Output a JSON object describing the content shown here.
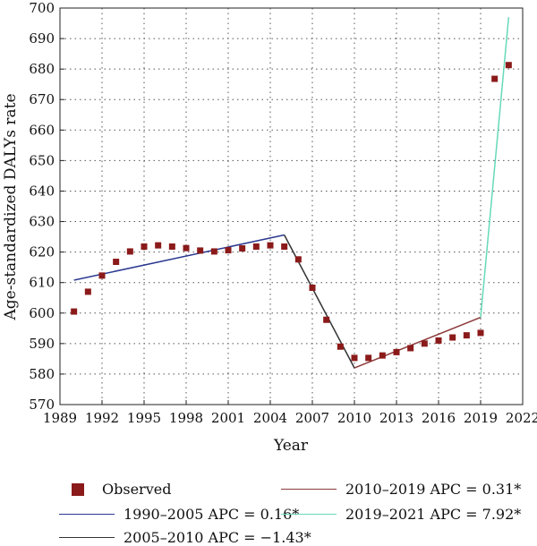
{
  "chart_data": {
    "type": "scatter",
    "xlabel": "Year",
    "ylabel": "Age-standardized DALYs rate",
    "xlim": [
      1989,
      2022
    ],
    "ylim": [
      570,
      700
    ],
    "xticks": [
      "1989",
      "1992",
      "1995",
      "1998",
      "2001",
      "2004",
      "2007",
      "2010",
      "2013",
      "2016",
      "2019",
      "2022"
    ],
    "yticks": [
      "570",
      "580",
      "590",
      "600",
      "610",
      "620",
      "630",
      "640",
      "650",
      "660",
      "670",
      "680",
      "690",
      "700"
    ],
    "grid": true,
    "observed": {
      "name": "Observed",
      "color": "#8B1A1A",
      "x": [
        1990,
        1991,
        1992,
        1993,
        1994,
        1995,
        1996,
        1997,
        1998,
        1999,
        2000,
        2001,
        2002,
        2003,
        2004,
        2005,
        2006,
        2007,
        2008,
        2009,
        2010,
        2011,
        2012,
        2013,
        2014,
        2015,
        2016,
        2017,
        2018,
        2019,
        2020,
        2021
      ],
      "y": [
        600.5,
        607.0,
        612.3,
        616.8,
        620.2,
        621.8,
        622.2,
        621.8,
        621.3,
        620.5,
        620.2,
        620.6,
        621.2,
        621.8,
        622.2,
        621.8,
        617.6,
        608.3,
        597.8,
        589.0,
        585.3,
        585.3,
        586.1,
        587.2,
        588.5,
        590.0,
        591.0,
        592.0,
        592.7,
        593.5,
        676.8,
        681.3
      ]
    },
    "segments": [
      {
        "name": "1990–2005 APC = 0.16*",
        "color": "#2B3990",
        "x": [
          1990,
          2005
        ],
        "y": [
          610.8,
          625.6
        ]
      },
      {
        "name": "2005–2010 APC = −1.43*",
        "color": "#333333",
        "x": [
          2005,
          2010
        ],
        "y": [
          625.6,
          582.0
        ]
      },
      {
        "name": "2010–2019 APC = 0.31*",
        "color": "#8B3A3A",
        "x": [
          2010,
          2019
        ],
        "y": [
          582.0,
          598.6
        ]
      },
      {
        "name": "2019–2021 APC = 7.92*",
        "color": "#66D9B8",
        "x": [
          2019,
          2021
        ],
        "y": [
          598.6,
          697.0
        ]
      }
    ]
  }
}
